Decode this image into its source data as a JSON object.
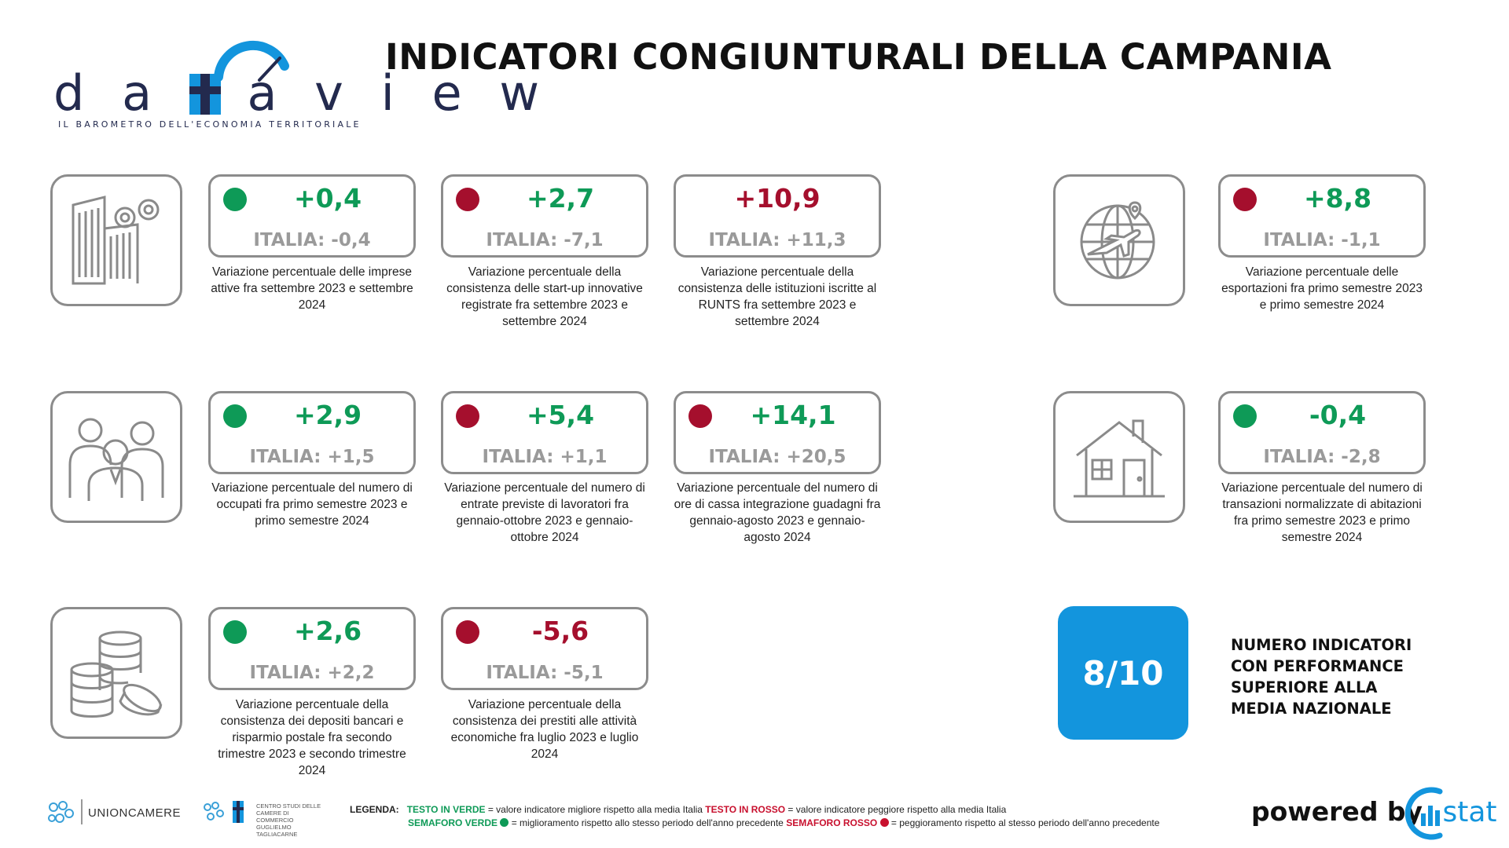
{
  "header": {
    "title": "INDICATORI CONGIUNTURALI DELLA CAMPANIA"
  },
  "logo": {
    "word": "daaview",
    "subtitle": "IL BAROMETRO DELL'ECONOMIA TERRITORIALE"
  },
  "icons": [
    "buildings-gears-icon",
    "globe-plane-icon",
    "people-icon",
    "house-icon",
    "coins-icon"
  ],
  "indicators": [
    {
      "value": "+0,4",
      "value_color": "green",
      "dot": "green",
      "italia": "ITALIA: -0,4",
      "desc": "Variazione percentuale delle imprese attive fra settembre 2023 e settembre 2024"
    },
    {
      "value": "+2,7",
      "value_color": "green",
      "dot": "red",
      "italia": "ITALIA: -7,1",
      "desc": "Variazione percentuale della consistenza delle start-up innovative registrate fra settembre 2023 e settembre 2024"
    },
    {
      "value": "+10,9",
      "value_color": "red",
      "dot": "none",
      "italia": "ITALIA: +11,3",
      "desc": "Variazione percentuale della consistenza delle istituzioni iscritte al RUNTS fra settembre 2023 e settembre 2024"
    },
    {
      "value": "+8,8",
      "value_color": "green",
      "dot": "red",
      "italia": "ITALIA: -1,1",
      "desc": "Variazione percentuale delle esportazioni fra primo semestre 2023 e primo semestre 2024"
    },
    {
      "value": "+2,9",
      "value_color": "green",
      "dot": "green",
      "italia": "ITALIA: +1,5",
      "desc": "Variazione percentuale del numero di occupati fra primo semestre 2023 e primo semestre 2024"
    },
    {
      "value": "+5,4",
      "value_color": "green",
      "dot": "red",
      "italia": "ITALIA: +1,1",
      "desc": "Variazione percentuale del numero di entrate previste di lavoratori fra gennaio-ottobre 2023 e gennaio-ottobre 2024"
    },
    {
      "value": "+14,1",
      "value_color": "green",
      "dot": "red",
      "italia": "ITALIA: +20,5",
      "desc": "Variazione percentuale del numero di ore di cassa integrazione guadagni fra gennaio-agosto 2023 e gennaio-agosto 2024"
    },
    {
      "value": "-0,4",
      "value_color": "green",
      "dot": "green",
      "italia": "ITALIA: -2,8",
      "desc": "Variazione percentuale del numero di transazioni normalizzate di abitazioni fra primo semestre 2023 e primo semestre 2024"
    },
    {
      "value": "+2,6",
      "value_color": "green",
      "dot": "green",
      "italia": "ITALIA: +2,2",
      "desc": "Variazione percentuale della consistenza dei depositi bancari e risparmio postale fra secondo trimestre 2023 e secondo trimestre 2024"
    },
    {
      "value": "-5,6",
      "value_color": "red",
      "dot": "red",
      "italia": "ITALIA: -5,1",
      "desc": "Variazione percentuale della consistenza dei prestiti alle attività economiche fra luglio 2023 e luglio 2024"
    }
  ],
  "score": {
    "value": "8/10",
    "label": "NUMERO INDICATORI CON PERFORMANCE SUPERIORE ALLA MEDIA NAZIONALE"
  },
  "footer": {
    "unioncamere": "UNIONCAMERE",
    "centro_studi": "CENTRO STUDI DELLE CAMERE DI COMMERCIO GUGLIELMO TAGLIACARNE",
    "legend_label": "LEGENDA:",
    "legend_green_text": "TESTO IN VERDE",
    "legend_green_desc": " = valore indicatore migliore rispetto alla media Italia ",
    "legend_red_text": "TESTO IN ROSSO",
    "legend_red_desc": " = valore indicatore peggiore rispetto alla media Italia",
    "sem_green": "SEMAFORO VERDE",
    "sem_green_desc": " = miglioramento rispetto allo stesso periodo dell'anno precedente ",
    "sem_red": "SEMAFORO ROSSO",
    "sem_red_desc": " = peggioramento rispetto al stesso periodo dell'anno precedente",
    "powered_by": "powered by",
    "istat": ".stat"
  },
  "colors": {
    "green": "#0e9a57",
    "red": "#a50f2d",
    "accent": "#1395dd",
    "navy": "#232a4e",
    "border": "#8c8c8c"
  }
}
